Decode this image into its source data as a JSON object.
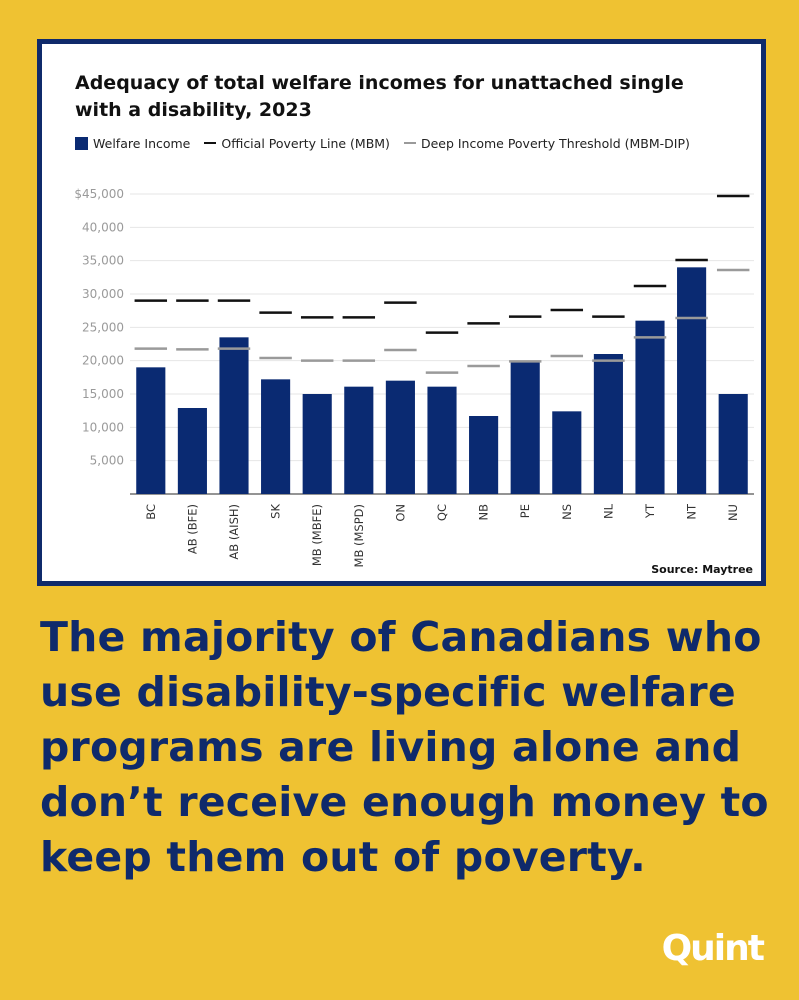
{
  "chart_data": {
    "type": "bar",
    "title": "Adequacy of total welfare incomes for unattached single with a disability, 2023",
    "categories": [
      "BC",
      "AB (BFE)",
      "AB (AISH)",
      "SK",
      "MB (MBFE)",
      "MB (MSPD)",
      "ON",
      "QC",
      "NB",
      "PE",
      "NS",
      "NL",
      "YT",
      "NT",
      "NU"
    ],
    "series": [
      {
        "name": "Welfare Income",
        "mark": "bar",
        "color": "#0a2a72",
        "values": [
          19000,
          12900,
          23500,
          17200,
          15000,
          16100,
          17000,
          16100,
          11700,
          20000,
          12400,
          21000,
          26000,
          34000,
          15000
        ]
      },
      {
        "name": "Official Poverty Line (MBM)",
        "mark": "dash",
        "color": "#111111",
        "values": [
          29000,
          29000,
          29000,
          27200,
          26500,
          26500,
          28700,
          24200,
          25600,
          26600,
          27600,
          26600,
          31200,
          35100,
          44700
        ]
      },
      {
        "name": "Deep Income Poverty Threshold (MBM-DIP)",
        "mark": "dash",
        "color": "#9a9a9a",
        "values": [
          21800,
          21700,
          21800,
          20400,
          20000,
          20000,
          21600,
          18200,
          19200,
          19900,
          20700,
          20000,
          23500,
          26400,
          33600
        ]
      }
    ],
    "y_ticks": [
      "5,000",
      "10,000",
      "15,000",
      "20,000",
      "25,000",
      "30,000",
      "35,000",
      "40,000",
      "$45,000"
    ],
    "y_tick_values": [
      5000,
      10000,
      15000,
      20000,
      25000,
      30000,
      35000,
      40000,
      45000
    ],
    "ylim": [
      0,
      45000
    ],
    "grid": true,
    "legend_position": "top-left",
    "xlabel": "",
    "ylabel": ""
  },
  "source": "Source: Maytree",
  "headline": "The majority of Canadians who use disability-specific welfare programs are living alone and don’t receive enough money to keep them out of poverty.",
  "brand": "Quint",
  "colors": {
    "background": "#efc232",
    "navy": "#0f2a6b",
    "bar": "#0a2a72"
  }
}
